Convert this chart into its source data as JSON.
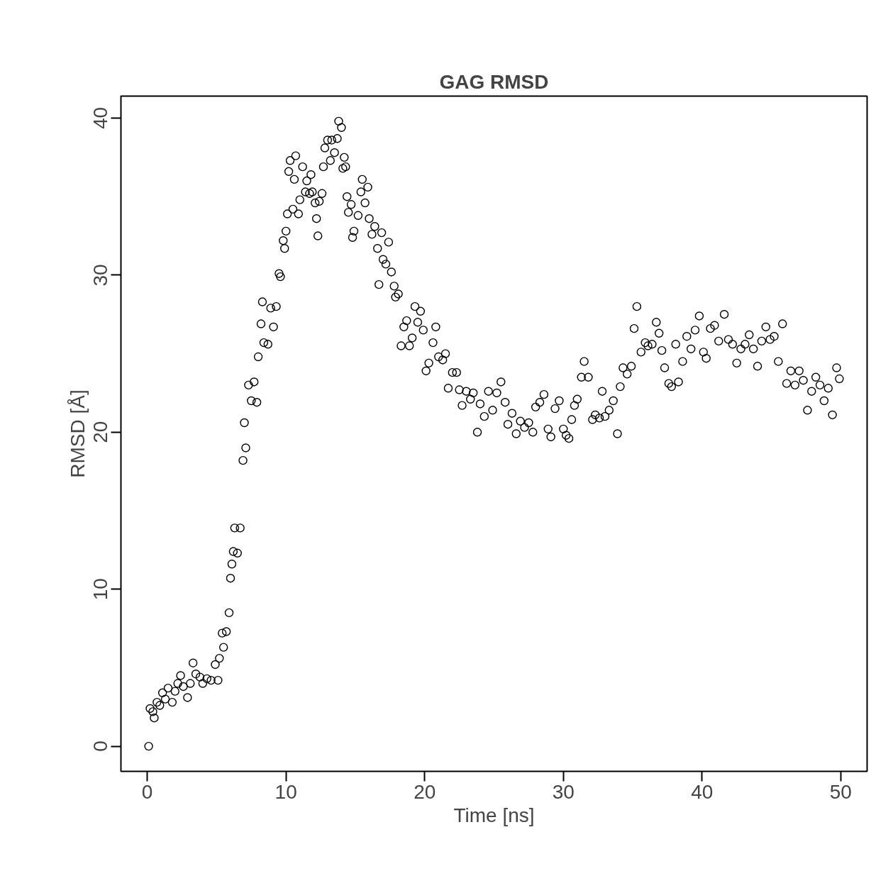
{
  "chart_data": {
    "type": "scatter",
    "title": "GAG RMSD",
    "xlabel": "Time [ns]",
    "ylabel": "RMSD [Å]",
    "xlim": [
      -1.9,
      51.9
    ],
    "ylim": [
      -1.6,
      41.4
    ],
    "xticks": [
      0,
      10,
      20,
      30,
      40,
      50
    ],
    "yticks": [
      0,
      10,
      20,
      30,
      40
    ],
    "grid": false,
    "marker": "circle",
    "series": [
      {
        "color": "#000000",
        "x": [
          0.1,
          0.2,
          0.4,
          0.5,
          0.7,
          0.9,
          1.1,
          1.3,
          1.5,
          1.8,
          2.0,
          2.2,
          2.4,
          2.6,
          2.9,
          3.1,
          3.3,
          3.5,
          3.8,
          4.0,
          4.3,
          4.6,
          4.9,
          5.1,
          5.2,
          5.4,
          5.5,
          5.7,
          5.9,
          6.0,
          6.1,
          6.2,
          6.3,
          6.5,
          6.7,
          6.9,
          7.0,
          7.1,
          7.3,
          7.5,
          7.7,
          7.9,
          8.0,
          8.2,
          8.3,
          8.4,
          8.7,
          8.9,
          9.1,
          9.3,
          9.5,
          9.6,
          9.8,
          9.9,
          10.0,
          10.1,
          10.2,
          10.3,
          10.5,
          10.6,
          10.7,
          10.9,
          11.0,
          11.2,
          11.4,
          11.5,
          11.7,
          11.8,
          11.9,
          12.1,
          12.2,
          12.3,
          12.4,
          12.6,
          12.7,
          12.8,
          13.0,
          13.2,
          13.3,
          13.5,
          13.7,
          13.8,
          14.0,
          14.1,
          14.2,
          14.3,
          14.4,
          14.5,
          14.7,
          14.8,
          14.9,
          15.2,
          15.4,
          15.5,
          15.7,
          15.9,
          16.0,
          16.2,
          16.4,
          16.6,
          16.7,
          16.9,
          17.0,
          17.2,
          17.4,
          17.6,
          17.8,
          17.9,
          18.1,
          18.3,
          18.5,
          18.7,
          18.9,
          19.1,
          19.3,
          19.5,
          19.7,
          19.9,
          20.1,
          20.3,
          20.6,
          20.8,
          21.0,
          21.3,
          21.5,
          21.7,
          22.0,
          22.3,
          22.5,
          22.7,
          23.0,
          23.3,
          23.5,
          23.8,
          24.0,
          24.3,
          24.6,
          24.9,
          25.2,
          25.5,
          25.8,
          26.0,
          26.3,
          26.6,
          26.9,
          27.2,
          27.5,
          27.8,
          28.0,
          28.3,
          28.6,
          28.9,
          29.1,
          29.4,
          29.7,
          30.0,
          30.2,
          30.4,
          30.6,
          30.8,
          31.0,
          31.3,
          31.5,
          31.8,
          32.1,
          32.3,
          32.6,
          32.8,
          33.0,
          33.3,
          33.6,
          33.9,
          34.1,
          34.3,
          34.6,
          34.9,
          35.1,
          35.3,
          35.6,
          35.9,
          36.1,
          36.4,
          36.7,
          36.9,
          37.1,
          37.3,
          37.6,
          37.8,
          38.1,
          38.3,
          38.6,
          38.9,
          39.2,
          39.5,
          39.8,
          40.1,
          40.3,
          40.6,
          40.9,
          41.2,
          41.6,
          41.9,
          42.2,
          42.5,
          42.8,
          43.1,
          43.4,
          43.7,
          44.0,
          44.3,
          44.6,
          44.9,
          45.2,
          45.5,
          45.8,
          46.1,
          46.4,
          46.7,
          47.0,
          47.3,
          47.6,
          47.9,
          48.2,
          48.5,
          48.8,
          49.1,
          49.4,
          49.7,
          49.9
        ],
        "values": [
          0,
          2.4,
          2.2,
          1.8,
          2.8,
          2.6,
          3.4,
          3.0,
          3.7,
          2.8,
          3.5,
          4.0,
          4.5,
          3.8,
          3.1,
          4.0,
          5.3,
          4.6,
          4.4,
          4.0,
          4.3,
          4.2,
          5.2,
          4.2,
          5.6,
          7.2,
          6.3,
          7.3,
          8.5,
          10.7,
          11.6,
          12.4,
          13.9,
          12.3,
          13.9,
          18.2,
          20.6,
          19.0,
          23.0,
          22.0,
          23.2,
          21.9,
          24.8,
          26.9,
          28.3,
          25.7,
          25.6,
          27.9,
          26.7,
          28.0,
          30.1,
          29.9,
          32.2,
          31.7,
          32.8,
          33.9,
          36.6,
          37.3,
          34.2,
          36.1,
          37.6,
          33.9,
          34.8,
          36.9,
          35.3,
          36.0,
          35.2,
          36.4,
          35.3,
          34.6,
          33.6,
          32.5,
          34.7,
          35.2,
          36.9,
          38.1,
          38.6,
          37.3,
          38.6,
          37.8,
          38.7,
          39.8,
          39.4,
          36.8,
          37.5,
          36.9,
          35.0,
          34.0,
          34.5,
          32.4,
          32.8,
          33.8,
          35.3,
          36.1,
          34.6,
          35.6,
          33.6,
          32.6,
          33.1,
          31.7,
          29.4,
          32.7,
          31.0,
          30.7,
          32.1,
          30.2,
          29.3,
          28.6,
          28.8,
          25.5,
          26.7,
          27.1,
          25.5,
          26.0,
          28.0,
          27.0,
          27.7,
          26.5,
          23.9,
          24.4,
          25.7,
          26.7,
          24.8,
          24.6,
          25.0,
          22.8,
          23.8,
          23.8,
          22.7,
          21.7,
          22.6,
          22.1,
          22.5,
          20.0,
          21.8,
          21.0,
          22.6,
          21.4,
          22.5,
          23.2,
          21.9,
          20.5,
          21.2,
          19.9,
          20.7,
          20.3,
          20.6,
          20.0,
          21.6,
          21.9,
          22.4,
          20.2,
          19.7,
          21.5,
          22.0,
          20.2,
          19.8,
          19.6,
          20.8,
          21.7,
          22.1,
          23.5,
          24.5,
          23.5,
          20.8,
          21.1,
          20.9,
          22.6,
          21.0,
          21.4,
          22.0,
          19.9,
          22.9,
          24.1,
          23.7,
          24.2,
          26.6,
          28.0,
          25.1,
          25.7,
          25.5,
          25.6,
          27.0,
          26.3,
          25.2,
          24.1,
          23.1,
          22.9,
          25.6,
          23.2,
          24.5,
          26.1,
          25.3,
          26.5,
          27.4,
          25.1,
          24.7,
          26.6,
          26.8,
          25.8,
          27.5,
          25.9,
          25.6,
          24.4,
          25.3,
          25.6,
          26.2,
          25.3,
          24.2,
          25.8,
          26.7,
          25.9,
          26.1,
          24.5,
          26.9,
          23.1,
          23.9,
          23.0,
          23.9,
          23.3,
          21.4,
          22.6,
          23.5,
          23.0,
          22.0,
          22.8,
          21.1,
          24.1,
          23.4
        ]
      }
    ]
  }
}
